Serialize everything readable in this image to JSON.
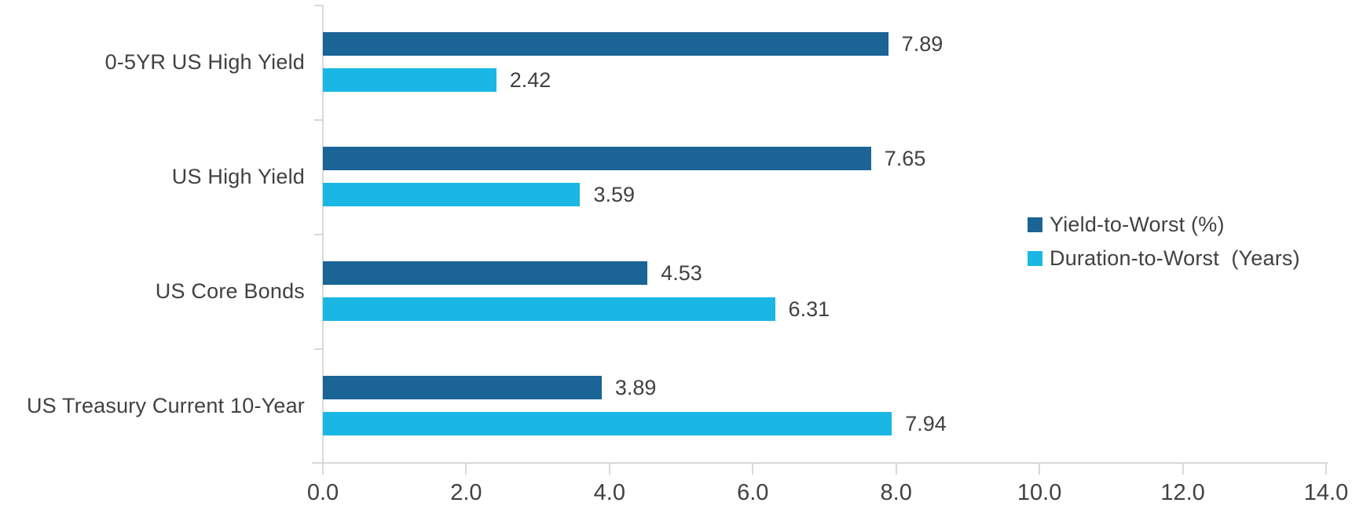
{
  "chart_data": {
    "type": "bar",
    "orientation": "horizontal",
    "title": "",
    "categories": [
      "0-5YR US High Yield",
      "US High Yield",
      "US Core Bonds",
      "US Treasury Current 10-Year"
    ],
    "series": [
      {
        "name": "Yield-to-Worst (%)",
        "color": "#1A6496",
        "values": [
          7.89,
          7.65,
          4.53,
          3.89
        ]
      },
      {
        "name": "Duration-to-Worst  (Years)",
        "color": "#1AB6E4",
        "values": [
          2.42,
          3.59,
          6.31,
          7.94
        ]
      }
    ],
    "value_labels": [
      "7.89",
      "2.42",
      "7.65",
      "3.59",
      "4.53",
      "6.31",
      "3.89",
      "7.94"
    ],
    "xlim": [
      0,
      14
    ],
    "x_ticks": [
      "0.0",
      "2.0",
      "4.0",
      "6.0",
      "8.0",
      "10.0",
      "12.0",
      "14.0"
    ],
    "grid": false,
    "legend_position": "right"
  },
  "colors": {
    "axis": "#D9D9D9",
    "text": "#414141",
    "background": "#FFFFFF"
  }
}
